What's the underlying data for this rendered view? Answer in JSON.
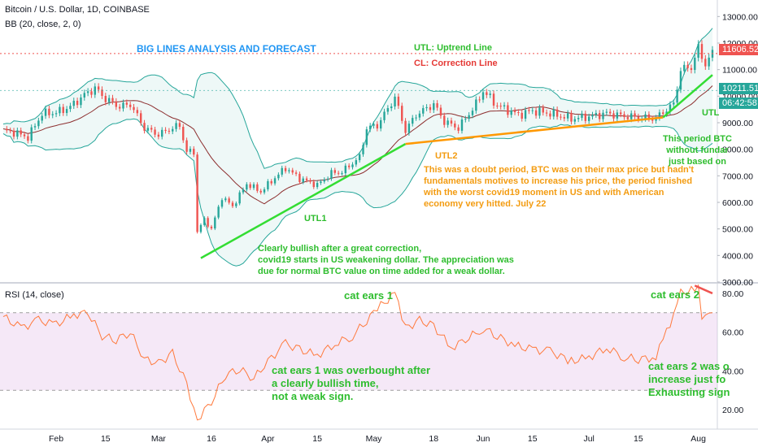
{
  "symbol_title": "Bitcoin / U.S. Dollar, 1D, COINBASE",
  "bb_legend": "BB (20, close, 2, 0)",
  "rsi_legend": "RSI (14, close)",
  "price_badges": {
    "current": "11606.52",
    "ma": "10211.51",
    "countdown": "06:42:58"
  },
  "annotations": {
    "title": "BIG LINES ANALYSIS  AND FORECAST",
    "utl_def": "UTL: Uptrend Line",
    "cl_def": "CL: Correction Line",
    "utl1": "UTL1",
    "utl2": "UTL2",
    "utl_right": "UTL",
    "bullish_1": "Clearly bullish after a great correction,",
    "bullish_2": "covid19 starts in US weakening dollar. The appreciation was",
    "bullish_3": "due for normal BTC value on time added for a weak dollar.",
    "doubt_1": "This was a doubt period, BTC was on their max price but hadn't",
    "doubt_2": "fundamentals motives to increase his price, the period finished",
    "doubt_3": "with the worst covid19  moment in US and with American",
    "doubt_4": "economy very hitted.  July 22",
    "period_1": "This period BTC",
    "period_2": "without fundar",
    "period_3": "just based on",
    "ears1": "cat ears 1",
    "ears2": "cat ears 2",
    "ears1_note_1": "cat ears 1 was overbought after",
    "ears1_note_2": "a clearly bullish time,",
    "ears1_note_3": "not a weak sign.",
    "ears2_note_1": "cat ears 2 was o",
    "ears2_note_2": "increase just fo",
    "ears2_note_3": "Exhausting sign"
  },
  "colors": {
    "up": "#26a69a",
    "down": "#ef5350",
    "bb_band": "#26a69a",
    "bb_basis": "#8d2f2f",
    "utl": "#33dd33",
    "cl": "#ff9800",
    "rsi_line": "#ff7a3d",
    "rsi_band": "#e1bee7",
    "title_blue": "#2196f3",
    "green_text": "#2ebd2e",
    "orange_text": "#f39c12",
    "red_text": "#e53935"
  },
  "chart_data": [
    {
      "type": "candlestick",
      "title": "Bitcoin / U.S. Dollar, 1D, COINBASE",
      "indicator": "BB (20, close, 2, 0)",
      "y_ticks": [
        3000,
        4000,
        5000,
        6000,
        7000,
        8000,
        9000,
        10000,
        11000,
        12000,
        13000
      ],
      "y_tick_labels": [
        "3000.00",
        "4000.00",
        "5000.00",
        "6000.00",
        "7000.00",
        "8000.00",
        "9000.00",
        "10000.00",
        "11000.00",
        "12000.00",
        "13000.00"
      ],
      "ylim": [
        3000,
        13500
      ],
      "x_ticks": [
        {
          "label": "Feb",
          "date": "2020-02-01"
        },
        {
          "label": "15",
          "date": "2020-02-15"
        },
        {
          "label": "Mar",
          "date": "2020-03-01"
        },
        {
          "label": "16",
          "date": "2020-03-16"
        },
        {
          "label": "Apr",
          "date": "2020-04-01"
        },
        {
          "label": "15",
          "date": "2020-04-15"
        },
        {
          "label": "May",
          "date": "2020-05-01"
        },
        {
          "label": "18",
          "date": "2020-05-18"
        },
        {
          "label": "Jun",
          "date": "2020-06-01"
        },
        {
          "label": "15",
          "date": "2020-06-15"
        },
        {
          "label": "Jul",
          "date": "2020-07-01"
        },
        {
          "label": "15",
          "date": "2020-07-15"
        },
        {
          "label": "Aug",
          "date": "2020-08-01"
        }
      ],
      "x_range": [
        "2020-01-17",
        "2020-08-05"
      ],
      "close_series": [
        [
          "2020-01-17",
          8700
        ],
        [
          "2020-01-20",
          8640
        ],
        [
          "2020-01-24",
          8450
        ],
        [
          "2020-01-28",
          9340
        ],
        [
          "2020-02-01",
          9380
        ],
        [
          "2020-02-05",
          9600
        ],
        [
          "2020-02-09",
          10050
        ],
        [
          "2020-02-12",
          10300
        ],
        [
          "2020-02-15",
          9900
        ],
        [
          "2020-02-19",
          9600
        ],
        [
          "2020-02-22",
          9700
        ],
        [
          "2020-02-26",
          8800
        ],
        [
          "2020-03-01",
          8550
        ],
        [
          "2020-03-04",
          8750
        ],
        [
          "2020-03-07",
          8900
        ],
        [
          "2020-03-09",
          7900
        ],
        [
          "2020-03-11",
          7900
        ],
        [
          "2020-03-12",
          4900
        ],
        [
          "2020-03-14",
          5350
        ],
        [
          "2020-03-16",
          5000
        ],
        [
          "2020-03-19",
          6200
        ],
        [
          "2020-03-22",
          5850
        ],
        [
          "2020-03-26",
          6700
        ],
        [
          "2020-03-30",
          6400
        ],
        [
          "2020-04-02",
          6800
        ],
        [
          "2020-04-06",
          7300
        ],
        [
          "2020-04-10",
          6900
        ],
        [
          "2020-04-15",
          6650
        ],
        [
          "2020-04-19",
          7100
        ],
        [
          "2020-04-22",
          7150
        ],
        [
          "2020-04-27",
          7700
        ],
        [
          "2020-04-29",
          8800
        ],
        [
          "2020-05-02",
          8900
        ],
        [
          "2020-05-07",
          9950
        ],
        [
          "2020-05-10",
          8700
        ],
        [
          "2020-05-13",
          9300
        ],
        [
          "2020-05-18",
          9700
        ],
        [
          "2020-05-21",
          9050
        ],
        [
          "2020-05-25",
          8800
        ],
        [
          "2020-05-30",
          9700
        ],
        [
          "2020-06-01",
          10200
        ],
        [
          "2020-06-05",
          9650
        ],
        [
          "2020-06-11",
          9300
        ],
        [
          "2020-06-15",
          9450
        ],
        [
          "2020-06-20",
          9350
        ],
        [
          "2020-06-26",
          9150
        ],
        [
          "2020-07-01",
          9230
        ],
        [
          "2020-07-06",
          9350
        ],
        [
          "2020-07-11",
          9250
        ],
        [
          "2020-07-15",
          9200
        ],
        [
          "2020-07-20",
          9160
        ],
        [
          "2020-07-22",
          9400
        ],
        [
          "2020-07-25",
          9700
        ],
        [
          "2020-07-27",
          11000
        ],
        [
          "2020-07-30",
          11100
        ],
        [
          "2020-08-01",
          11800
        ],
        [
          "2020-08-03",
          11200
        ],
        [
          "2020-08-05",
          11606
        ]
      ],
      "trend_lines": [
        {
          "name": "UTL1",
          "from": [
            "2020-03-13",
            3900
          ],
          "to": [
            "2020-05-10",
            8200
          ]
        },
        {
          "name": "UTL2",
          "from": [
            "2020-05-10",
            8200
          ],
          "to": [
            "2020-07-22",
            9200
          ]
        },
        {
          "name": "UTL",
          "from": [
            "2020-07-22",
            9200
          ],
          "to": [
            "2020-08-05",
            10800
          ]
        }
      ],
      "last_price": 11606.52,
      "ma_value": 10211.51
    },
    {
      "type": "line",
      "title": "RSI (14, close)",
      "y_ticks": [
        20,
        40,
        60,
        80
      ],
      "y_tick_labels": [
        "20.00",
        "40.00",
        "60.00",
        "80.00"
      ],
      "ylim": [
        10,
        85
      ],
      "band": [
        30,
        70
      ],
      "series": [
        [
          "2020-01-17",
          68
        ],
        [
          "2020-01-22",
          62
        ],
        [
          "2020-01-27",
          66
        ],
        [
          "2020-02-01",
          64
        ],
        [
          "2020-02-06",
          69
        ],
        [
          "2020-02-10",
          70
        ],
        [
          "2020-02-14",
          58
        ],
        [
          "2020-02-18",
          56
        ],
        [
          "2020-02-22",
          60
        ],
        [
          "2020-02-26",
          46
        ],
        [
          "2020-03-01",
          44
        ],
        [
          "2020-03-05",
          49
        ],
        [
          "2020-03-09",
          33
        ],
        [
          "2020-03-12",
          15
        ],
        [
          "2020-03-16",
          24
        ],
        [
          "2020-03-20",
          38
        ],
        [
          "2020-03-24",
          41
        ],
        [
          "2020-03-28",
          36
        ],
        [
          "2020-04-01",
          45
        ],
        [
          "2020-04-06",
          54
        ],
        [
          "2020-04-10",
          51
        ],
        [
          "2020-04-15",
          48
        ],
        [
          "2020-04-20",
          54
        ],
        [
          "2020-04-25",
          58
        ],
        [
          "2020-04-29",
          66
        ],
        [
          "2020-05-02",
          72
        ],
        [
          "2020-05-07",
          80
        ],
        [
          "2020-05-10",
          62
        ],
        [
          "2020-05-14",
          66
        ],
        [
          "2020-05-18",
          63
        ],
        [
          "2020-05-23",
          52
        ],
        [
          "2020-05-27",
          56
        ],
        [
          "2020-06-01",
          62
        ],
        [
          "2020-06-05",
          58
        ],
        [
          "2020-06-10",
          53
        ],
        [
          "2020-06-15",
          51
        ],
        [
          "2020-06-20",
          50
        ],
        [
          "2020-06-26",
          45
        ],
        [
          "2020-07-01",
          47
        ],
        [
          "2020-07-06",
          52
        ],
        [
          "2020-07-11",
          47
        ],
        [
          "2020-07-15",
          46
        ],
        [
          "2020-07-20",
          47
        ],
        [
          "2020-07-22",
          56
        ],
        [
          "2020-07-25",
          68
        ],
        [
          "2020-07-27",
          80
        ],
        [
          "2020-07-30",
          82
        ],
        [
          "2020-08-01",
          84
        ],
        [
          "2020-08-02",
          68
        ],
        [
          "2020-08-04",
          72
        ],
        [
          "2020-08-05",
          70
        ]
      ],
      "trend_line": {
        "from": [
          "2020-07-31",
          84
        ],
        "to": [
          "2020-08-05",
          80
        ]
      }
    }
  ]
}
